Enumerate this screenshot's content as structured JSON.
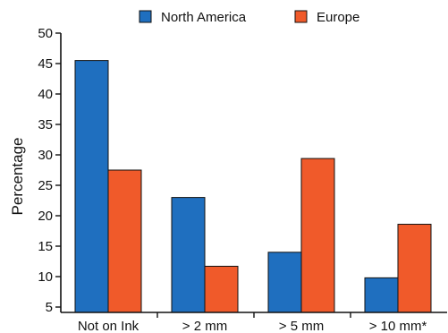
{
  "chart_data": {
    "type": "bar",
    "title": "",
    "xlabel": "",
    "ylabel": "Percentage",
    "ylim": [
      5,
      50
    ],
    "yticks": [
      5,
      10,
      15,
      20,
      25,
      30,
      35,
      40,
      45,
      50
    ],
    "categories": [
      "Not on Ink",
      "> 2 mm",
      "> 5 mm",
      "> 10 mm*"
    ],
    "series": [
      {
        "name": "North America",
        "color": "#1f6fbf",
        "values": [
          45.5,
          23.0,
          14.0,
          9.8
        ]
      },
      {
        "name": "Europe",
        "color": "#f05a2a",
        "values": [
          27.5,
          11.7,
          29.4,
          18.6
        ]
      }
    ],
    "grid": false,
    "legend_position": "top-center"
  }
}
